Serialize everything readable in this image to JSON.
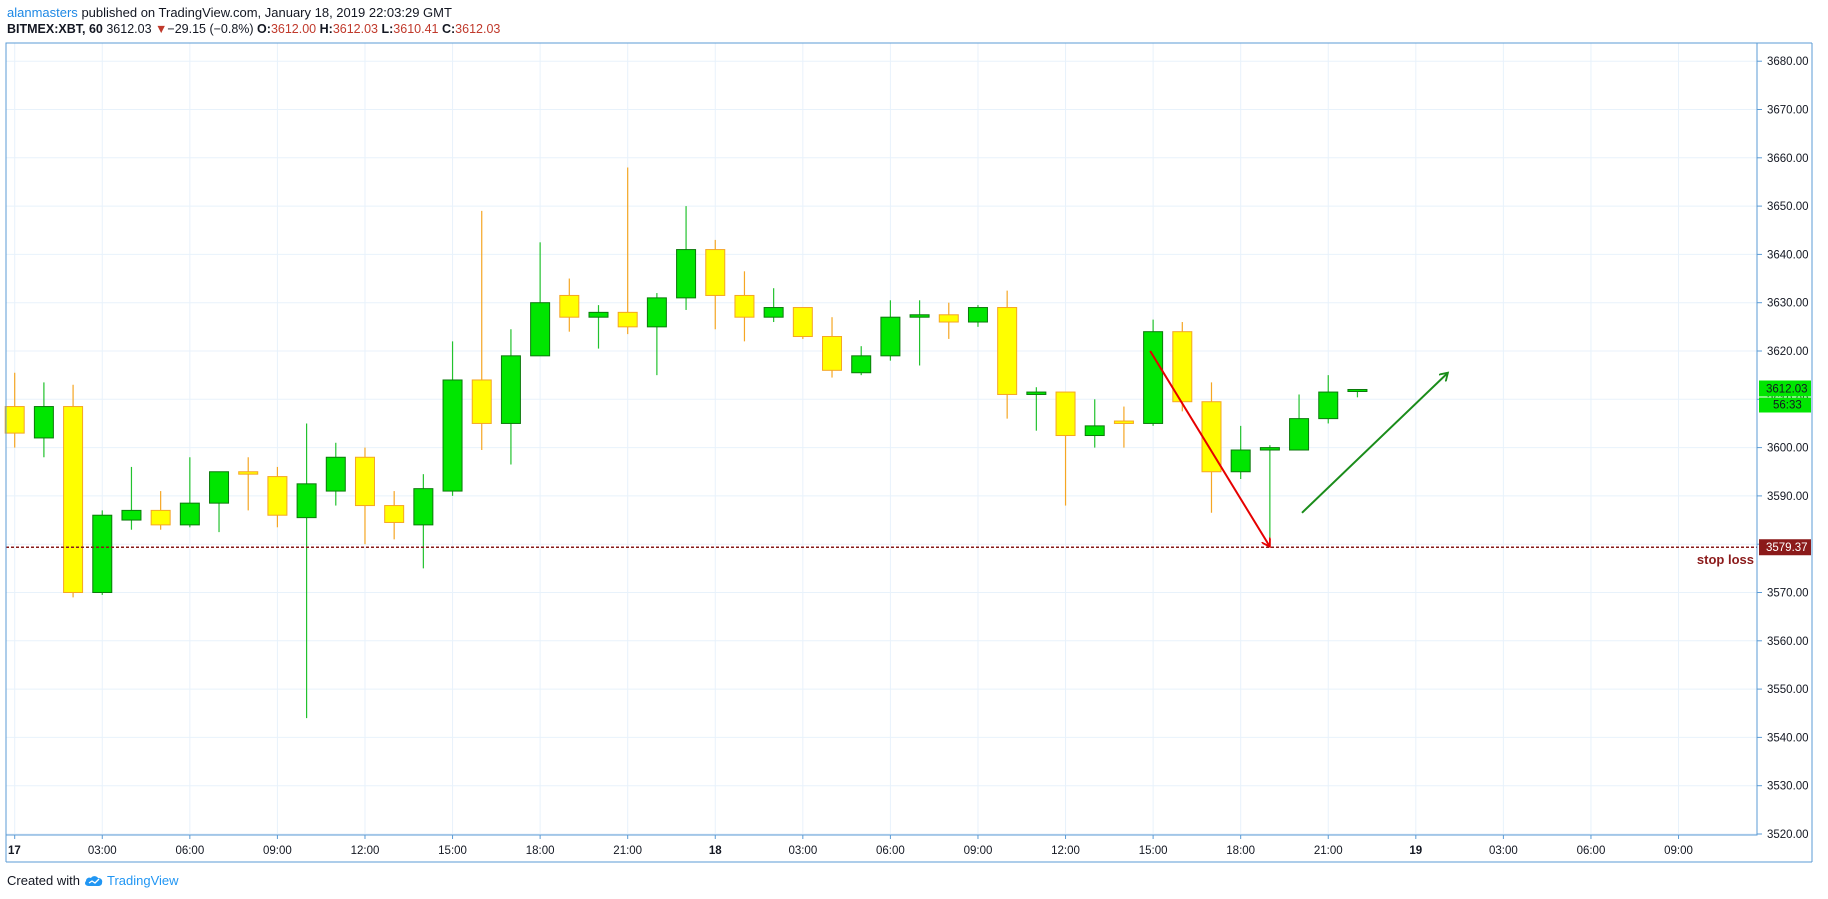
{
  "header": {
    "author": "alanmasters",
    "published_text": "published on TradingView.com, January 18, 2019 22:03:29 GMT",
    "symbol": "BITMEX:XBT, 60",
    "last_price": "3612.03",
    "change_arrow": "▼",
    "change": "−29.15 (−0.8%)",
    "open_label": "O:",
    "open": "3612.00",
    "high_label": "H:",
    "high": "3612.03",
    "low_label": "L:",
    "low": "3610.41",
    "close_label": "C:",
    "close": "3612.03"
  },
  "footer": {
    "created_with": "Created with",
    "brand": "TradingView"
  },
  "colors": {
    "up": "#00e600",
    "down": "#ffff00",
    "up_wick": "#22c22e",
    "down_wick": "#f5a623",
    "stop_loss": "#8b1a1a",
    "last_price_badge": "#00e600",
    "arrow_down": "#e60000",
    "arrow_up": "#1a8c1a"
  },
  "chart_data": {
    "type": "candlestick",
    "ylim": [
      3518,
      3685
    ],
    "y_ticks": [
      "3520.00",
      "3530.00",
      "3540.00",
      "3550.00",
      "3560.00",
      "3570.00",
      "3580.00",
      "3590.00",
      "3600.00",
      "3610.00",
      "3620.00",
      "3630.00",
      "3640.00",
      "3650.00",
      "3660.00",
      "3670.00",
      "3680.00"
    ],
    "y_tick_values": [
      3520,
      3530,
      3540,
      3550,
      3560,
      3570,
      3580,
      3590,
      3600,
      3610,
      3620,
      3630,
      3640,
      3650,
      3660,
      3670,
      3680
    ],
    "x_tick_labels": [
      "17",
      "03:00",
      "06:00",
      "09:00",
      "12:00",
      "15:00",
      "18:00",
      "21:00",
      "18",
      "03:00",
      "06:00",
      "09:00",
      "12:00",
      "15:00",
      "18:00",
      "21:00",
      "19",
      "03:00",
      "06:00",
      "09:00"
    ],
    "x_tick_hours": [
      0,
      3,
      6,
      9,
      12,
      15,
      18,
      21,
      24,
      27,
      30,
      33,
      36,
      39,
      42,
      45,
      48,
      51,
      54,
      57
    ],
    "x_tick_bold": [
      true,
      false,
      false,
      false,
      false,
      false,
      false,
      false,
      true,
      false,
      false,
      false,
      false,
      false,
      false,
      false,
      true,
      false,
      false,
      false
    ],
    "candles": [
      {
        "h": 0,
        "o": 3608.5,
        "hi": 3615.5,
        "lo": 3600,
        "c": 3603
      },
      {
        "h": 1,
        "o": 3602,
        "hi": 3613.5,
        "lo": 3598,
        "c": 3608.5
      },
      {
        "h": 2,
        "o": 3608.5,
        "hi": 3613,
        "lo": 3569,
        "c": 3570
      },
      {
        "h": 3,
        "o": 3570,
        "hi": 3587,
        "lo": 3569.5,
        "c": 3586
      },
      {
        "h": 4,
        "o": 3585,
        "hi": 3596,
        "lo": 3583,
        "c": 3587
      },
      {
        "h": 5,
        "o": 3587,
        "hi": 3591,
        "lo": 3583,
        "c": 3584
      },
      {
        "h": 6,
        "o": 3584,
        "hi": 3598,
        "lo": 3583.5,
        "c": 3588.5
      },
      {
        "h": 7,
        "o": 3588.5,
        "hi": 3595,
        "lo": 3582.5,
        "c": 3595
      },
      {
        "h": 8,
        "o": 3595,
        "hi": 3598,
        "lo": 3587,
        "c": 3594.5
      },
      {
        "h": 9,
        "o": 3594,
        "hi": 3596,
        "lo": 3583.5,
        "c": 3586
      },
      {
        "h": 10,
        "o": 3585.5,
        "hi": 3605,
        "lo": 3544,
        "c": 3592.5
      },
      {
        "h": 11,
        "o": 3591,
        "hi": 3601,
        "lo": 3588,
        "c": 3598
      },
      {
        "h": 12,
        "o": 3598,
        "hi": 3600,
        "lo": 3580,
        "c": 3588
      },
      {
        "h": 13,
        "o": 3588,
        "hi": 3591,
        "lo": 3581,
        "c": 3584.5
      },
      {
        "h": 14,
        "o": 3584,
        "hi": 3594.5,
        "lo": 3575,
        "c": 3591.5
      },
      {
        "h": 15,
        "o": 3591,
        "hi": 3622,
        "lo": 3590,
        "c": 3614
      },
      {
        "h": 16,
        "o": 3614,
        "hi": 3649,
        "lo": 3599.5,
        "c": 3605
      },
      {
        "h": 17,
        "o": 3605,
        "hi": 3624.5,
        "lo": 3596.5,
        "c": 3619
      },
      {
        "h": 18,
        "o": 3619,
        "hi": 3642.5,
        "lo": 3619,
        "c": 3630
      },
      {
        "h": 19,
        "o": 3631.5,
        "hi": 3635,
        "lo": 3624,
        "c": 3627
      },
      {
        "h": 20,
        "o": 3627,
        "hi": 3629.5,
        "lo": 3620.5,
        "c": 3628
      },
      {
        "h": 21,
        "o": 3628,
        "hi": 3658,
        "lo": 3623.5,
        "c": 3625
      },
      {
        "h": 22,
        "o": 3625,
        "hi": 3632,
        "lo": 3615,
        "c": 3631
      },
      {
        "h": 23,
        "o": 3631,
        "hi": 3650,
        "lo": 3628.5,
        "c": 3641
      },
      {
        "h": 24,
        "o": 3641,
        "hi": 3643,
        "lo": 3624.5,
        "c": 3631.5
      },
      {
        "h": 25,
        "o": 3631.5,
        "hi": 3636.5,
        "lo": 3622,
        "c": 3627
      },
      {
        "h": 26,
        "o": 3627,
        "hi": 3633,
        "lo": 3626,
        "c": 3629
      },
      {
        "h": 27,
        "o": 3629,
        "hi": 3629,
        "lo": 3622.5,
        "c": 3623
      },
      {
        "h": 28,
        "o": 3623,
        "hi": 3627,
        "lo": 3614.5,
        "c": 3616
      },
      {
        "h": 29,
        "o": 3615.5,
        "hi": 3621,
        "lo": 3615,
        "c": 3619
      },
      {
        "h": 30,
        "o": 3619,
        "hi": 3630.5,
        "lo": 3618,
        "c": 3627
      },
      {
        "h": 31,
        "o": 3627,
        "hi": 3630.5,
        "lo": 3617,
        "c": 3627.5
      },
      {
        "h": 32,
        "o": 3627.5,
        "hi": 3630,
        "lo": 3622.5,
        "c": 3626
      },
      {
        "h": 33,
        "o": 3626,
        "hi": 3629.5,
        "lo": 3625,
        "c": 3629
      },
      {
        "h": 34,
        "o": 3629,
        "hi": 3632.5,
        "lo": 3606,
        "c": 3611
      },
      {
        "h": 35,
        "o": 3611,
        "hi": 3612.5,
        "lo": 3603.5,
        "c": 3611.5
      },
      {
        "h": 36,
        "o": 3611.5,
        "hi": 3611.5,
        "lo": 3588,
        "c": 3602.5
      },
      {
        "h": 37,
        "o": 3602.5,
        "hi": 3610,
        "lo": 3600,
        "c": 3604.5
      },
      {
        "h": 38,
        "o": 3605.5,
        "hi": 3608.5,
        "lo": 3600,
        "c": 3605
      },
      {
        "h": 39,
        "o": 3605,
        "hi": 3626.5,
        "lo": 3604.5,
        "c": 3624
      },
      {
        "h": 40,
        "o": 3624,
        "hi": 3626,
        "lo": 3607.5,
        "c": 3609.5
      },
      {
        "h": 41,
        "o": 3609.5,
        "hi": 3613.5,
        "lo": 3586.5,
        "c": 3595
      },
      {
        "h": 42,
        "o": 3595,
        "hi": 3604.5,
        "lo": 3593.5,
        "c": 3599.5
      },
      {
        "h": 43,
        "o": 3599.5,
        "hi": 3600.5,
        "lo": 3579.37,
        "c": 3600
      },
      {
        "h": 44,
        "o": 3599.5,
        "hi": 3611,
        "lo": 3599.5,
        "c": 3606
      },
      {
        "h": 45,
        "o": 3606,
        "hi": 3615,
        "lo": 3605,
        "c": 3611.5
      },
      {
        "h": 46,
        "o": 3612,
        "hi": 3612.03,
        "lo": 3610.41,
        "c": 3612.03
      }
    ],
    "stop_loss": {
      "value": 3579.37,
      "label": "stop loss",
      "value_label": "3579.37"
    },
    "last_price": {
      "value": 3612.03,
      "label": "3612.03",
      "timer": "56:33"
    },
    "annotations": [
      {
        "type": "arrow",
        "name": "red-down-arrow",
        "from": {
          "h": 38.9,
          "y": 3620
        },
        "to": {
          "h": 43,
          "y": 3579.5
        }
      },
      {
        "type": "arrow",
        "name": "green-up-arrow",
        "from": {
          "h": 44.1,
          "y": 3586.5
        },
        "to": {
          "h": 49.1,
          "y": 3615.5
        }
      }
    ]
  }
}
